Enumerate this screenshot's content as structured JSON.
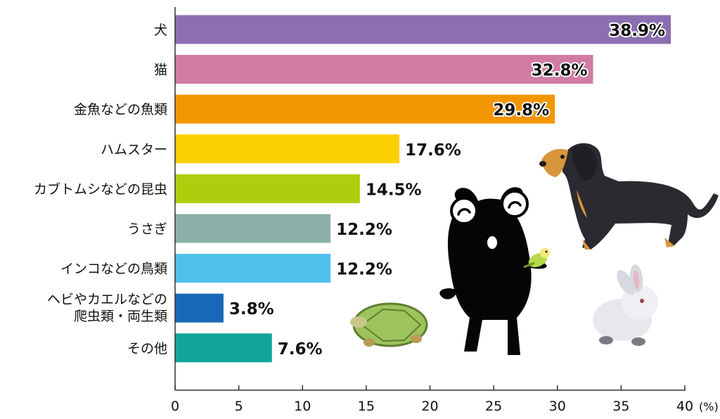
{
  "chart_data": {
    "type": "bar",
    "orientation": "horizontal",
    "categories": [
      "犬",
      "猫",
      "金魚などの魚類",
      "ハムスター",
      "カブトムシなどの昆虫",
      "うさぎ",
      "インコなどの鳥類",
      "ヘビやカエルなどの\n爬虫類・両生類",
      "その他"
    ],
    "values": [
      38.9,
      32.8,
      29.8,
      17.6,
      14.5,
      12.2,
      12.2,
      3.8,
      7.6
    ],
    "value_labels": [
      "38.9%",
      "32.8%",
      "29.8%",
      "17.6%",
      "14.5%",
      "12.2%",
      "12.2%",
      "3.8%",
      "7.6%"
    ],
    "colors": [
      "#8c6fb1",
      "#d17ba5",
      "#f29600",
      "#fbd000",
      "#acce0c",
      "#8cb0a8",
      "#50bfec",
      "#1769b7",
      "#11a49a"
    ],
    "xlim": [
      0,
      40
    ],
    "xticks": [
      "0",
      "5",
      "10",
      "15",
      "20",
      "25",
      "30",
      "35",
      "40"
    ],
    "xunit": "(%)",
    "grid": false
  }
}
